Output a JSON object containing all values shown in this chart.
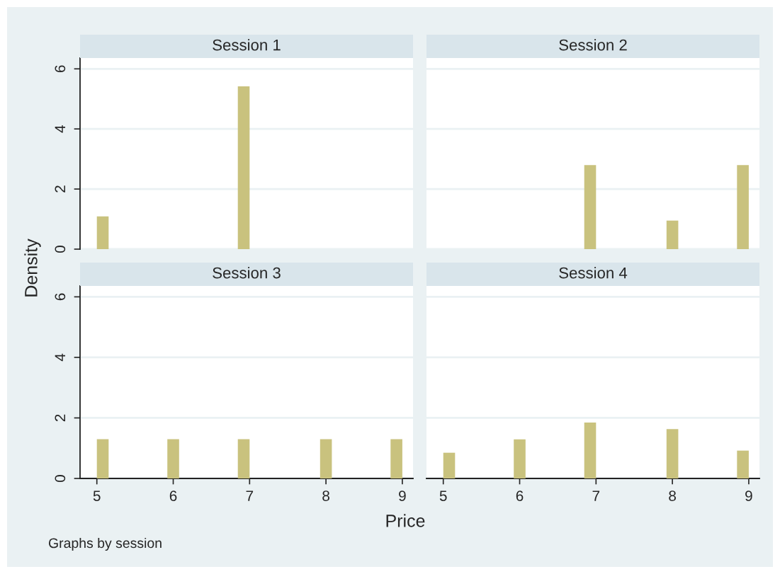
{
  "chart_data": [
    {
      "type": "histogram",
      "title": "Session 1",
      "ylabel": "Density",
      "bins": [
        5,
        5.154,
        6.846,
        7
      ],
      "values": [
        1.09,
        0,
        5.42
      ],
      "color": "#c9c27e",
      "xlim": [
        4.78,
        9.14
      ],
      "ylim": [
        0,
        6.36
      ],
      "xticks": [
        5,
        6,
        7,
        8,
        9
      ],
      "yticks": [
        0,
        2,
        4,
        6
      ],
      "grid": "y",
      "tick_labels": "y"
    },
    {
      "type": "histogram",
      "title": "Session 2",
      "bins": [
        6.846,
        7,
        7.923,
        8.077,
        8.846,
        9
      ],
      "values": [
        2.8,
        0,
        0.95,
        0,
        2.8
      ],
      "color": "#c9c27e",
      "xlim": [
        4.78,
        9.14
      ],
      "ylim": [
        0,
        6.36
      ],
      "xticks": [
        5,
        6,
        7,
        8,
        9
      ],
      "yticks": [
        0,
        2,
        4,
        6
      ],
      "grid": "y",
      "tick_labels": false
    },
    {
      "type": "histogram",
      "title": "Session 3",
      "xlabel": "Price",
      "annotations": [
        "Graphs by session"
      ],
      "bins": [
        5,
        5.154,
        5.923,
        6.077,
        6.846,
        7,
        7.923,
        8.077,
        8.846,
        9
      ],
      "values": [
        1.3,
        0,
        1.3,
        0,
        1.3,
        0,
        1.3,
        0,
        1.3
      ],
      "color": "#c9c27e",
      "xlim": [
        4.78,
        9.14
      ],
      "ylim": [
        0,
        6.36
      ],
      "xticks": [
        5,
        6,
        7,
        8,
        9
      ],
      "yticks": [
        0,
        2,
        4,
        6
      ],
      "grid": "y"
    },
    {
      "type": "histogram",
      "title": "Session 4",
      "bins": [
        5,
        5.154,
        5.923,
        6.077,
        6.846,
        7,
        7.923,
        8.077,
        8.846,
        9
      ],
      "values": [
        0.85,
        0,
        1.29,
        0,
        1.85,
        0,
        1.63,
        0,
        0.92
      ],
      "color": "#c9c27e",
      "xlim": [
        4.78,
        9.14
      ],
      "ylim": [
        0,
        6.36
      ],
      "xticks": [
        5,
        6,
        7,
        8,
        9
      ],
      "yticks": [
        0,
        2,
        4,
        6
      ],
      "grid": "y",
      "tick_labels": "x"
    }
  ]
}
